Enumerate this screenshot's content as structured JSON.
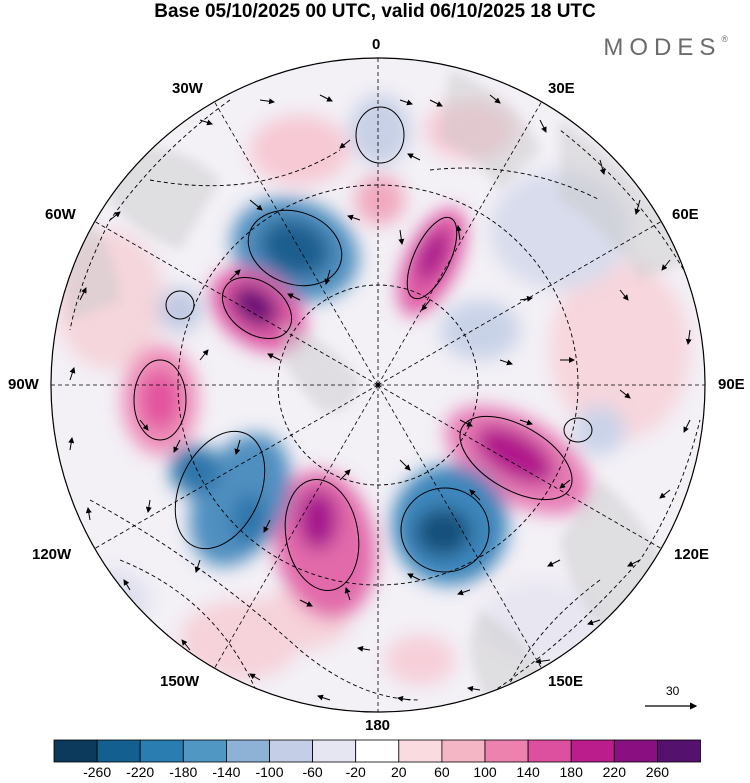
{
  "title": "Base 05/10/2025 00 UTC, valid 06/10/2025 18 UTC",
  "brand": "MODES",
  "brand_mark": "®",
  "longitude_labels": {
    "lon_0": "0",
    "lon_30e": "30E",
    "lon_60e": "60E",
    "lon_90e": "90E",
    "lon_120e": "120E",
    "lon_150e": "150E",
    "lon_180": "180",
    "lon_150w": "150W",
    "lon_120w": "120W",
    "lon_90w": "90W",
    "lon_60w": "60W",
    "lon_30w": "30W"
  },
  "reference_vector": {
    "value": "30"
  },
  "colorbar": {
    "ticks": [
      "-260",
      "-220",
      "-180",
      "-140",
      "-100",
      "-60",
      "-20",
      "20",
      "60",
      "100",
      "140",
      "180",
      "220",
      "260"
    ],
    "colors": [
      "#0b3a5c",
      "#135f8f",
      "#2a7db0",
      "#5097c4",
      "#8eb1d6",
      "#c4cee6",
      "#e6e6f2",
      "#ffffff",
      "#f9dbe0",
      "#f4b5c4",
      "#ec82ad",
      "#dd4f9f",
      "#bb1d8c",
      "#8a0f80",
      "#55116e"
    ]
  },
  "anomaly_centers": [
    {
      "name": "center-60w-neg",
      "value": -220
    },
    {
      "name": "center-75w-pos",
      "value": 260
    },
    {
      "name": "center-30e-pos",
      "value": 220
    },
    {
      "name": "center-105e-pos",
      "value": 220
    },
    {
      "name": "center-130e-neg",
      "value": -220
    },
    {
      "name": "center-165w-pos",
      "value": 220
    },
    {
      "name": "center-95w-pos",
      "value": 180
    },
    {
      "name": "center-130w-neg",
      "value": -180
    },
    {
      "name": "center-0-neg",
      "value": -100
    },
    {
      "name": "center-0-pos",
      "value": 60
    }
  ]
}
